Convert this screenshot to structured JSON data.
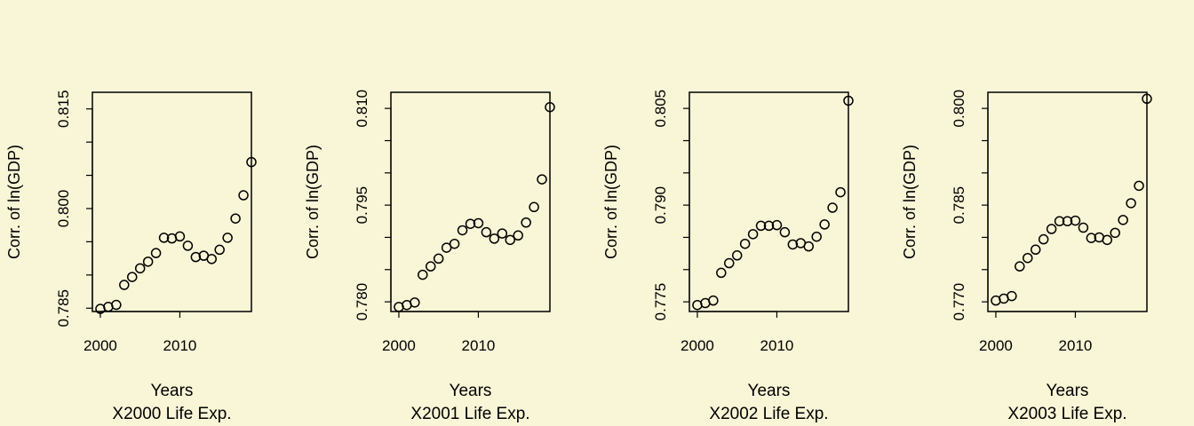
{
  "chart_data": [
    {
      "type": "scatter",
      "title": "",
      "xlabel": "Years",
      "subtitle": "X2000 Life Exp.",
      "ylabel": "Corr. of ln(GDP)",
      "xlim": [
        1999,
        2019
      ],
      "ylim": [
        0.7845,
        0.8175
      ],
      "xticks": [
        2000,
        2010
      ],
      "yticks": [
        0.785,
        0.8,
        0.815
      ],
      "ytick_minor": [
        0.79,
        0.795,
        0.805,
        0.81
      ],
      "x": [
        2000,
        2001,
        2002,
        2003,
        2004,
        2005,
        2006,
        2007,
        2008,
        2009,
        2010,
        2011,
        2012,
        2013,
        2014,
        2015,
        2016,
        2017,
        2018,
        2019
      ],
      "y": [
        0.7849,
        0.7852,
        0.7855,
        0.7885,
        0.7897,
        0.791,
        0.792,
        0.7933,
        0.7956,
        0.7955,
        0.7958,
        0.7944,
        0.7927,
        0.7929,
        0.7924,
        0.7938,
        0.7956,
        0.7985,
        0.802,
        0.807
      ]
    },
    {
      "type": "scatter",
      "title": "",
      "xlabel": "Years",
      "subtitle": "X2001 Life Exp.",
      "ylabel": "Corr. of ln(GDP)",
      "xlim": [
        1999,
        2019
      ],
      "ylim": [
        0.7785,
        0.8125
      ],
      "xticks": [
        2000,
        2010
      ],
      "yticks": [
        0.78,
        0.795,
        0.81
      ],
      "ytick_minor": [
        0.785,
        0.79,
        0.8,
        0.805
      ],
      "x": [
        2000,
        2001,
        2002,
        2003,
        2004,
        2005,
        2006,
        2007,
        2008,
        2009,
        2010,
        2011,
        2012,
        2013,
        2014,
        2015,
        2016,
        2017,
        2018,
        2019
      ],
      "y": [
        0.7792,
        0.7795,
        0.7799,
        0.7842,
        0.7855,
        0.7867,
        0.7884,
        0.789,
        0.7911,
        0.7921,
        0.7922,
        0.7908,
        0.7898,
        0.7906,
        0.7896,
        0.7903,
        0.7923,
        0.7947,
        0.799,
        0.8102
      ]
    },
    {
      "type": "scatter",
      "title": "",
      "xlabel": "Years",
      "subtitle": "X2002 Life Exp.",
      "ylabel": "Corr. of ln(GDP)",
      "xlim": [
        1999,
        2019
      ],
      "ylim": [
        0.7735,
        0.8075
      ],
      "xticks": [
        2000,
        2010
      ],
      "yticks": [
        0.775,
        0.79,
        0.805
      ],
      "ytick_minor": [
        0.78,
        0.785,
        0.795,
        0.8
      ],
      "x": [
        2000,
        2001,
        2002,
        2003,
        2004,
        2005,
        2006,
        2007,
        2008,
        2009,
        2010,
        2011,
        2012,
        2013,
        2014,
        2015,
        2016,
        2017,
        2018,
        2019
      ],
      "y": [
        0.7745,
        0.7748,
        0.7752,
        0.7795,
        0.781,
        0.7822,
        0.784,
        0.7855,
        0.7868,
        0.7868,
        0.7869,
        0.7858,
        0.7839,
        0.7841,
        0.7836,
        0.7851,
        0.787,
        0.7896,
        0.792,
        0.8062
      ]
    },
    {
      "type": "scatter",
      "title": "",
      "xlabel": "Years",
      "subtitle": "X2003 Life Exp.",
      "ylabel": "Corr. of ln(GDP)",
      "xlim": [
        1999,
        2019
      ],
      "ylim": [
        0.7685,
        0.8025
      ],
      "xticks": [
        2000,
        2010
      ],
      "yticks": [
        0.77,
        0.785,
        0.8
      ],
      "ytick_minor": [
        0.775,
        0.78,
        0.79,
        0.795
      ],
      "x": [
        2000,
        2001,
        2002,
        2003,
        2004,
        2005,
        2006,
        2007,
        2008,
        2009,
        2010,
        2011,
        2012,
        2013,
        2014,
        2015,
        2016,
        2017,
        2018,
        2019
      ],
      "y": [
        0.7702,
        0.7705,
        0.7709,
        0.7755,
        0.7768,
        0.7781,
        0.7797,
        0.7813,
        0.7825,
        0.7825,
        0.7826,
        0.7815,
        0.7799,
        0.78,
        0.7796,
        0.7807,
        0.7827,
        0.7853,
        0.788,
        0.8015
      ]
    }
  ]
}
